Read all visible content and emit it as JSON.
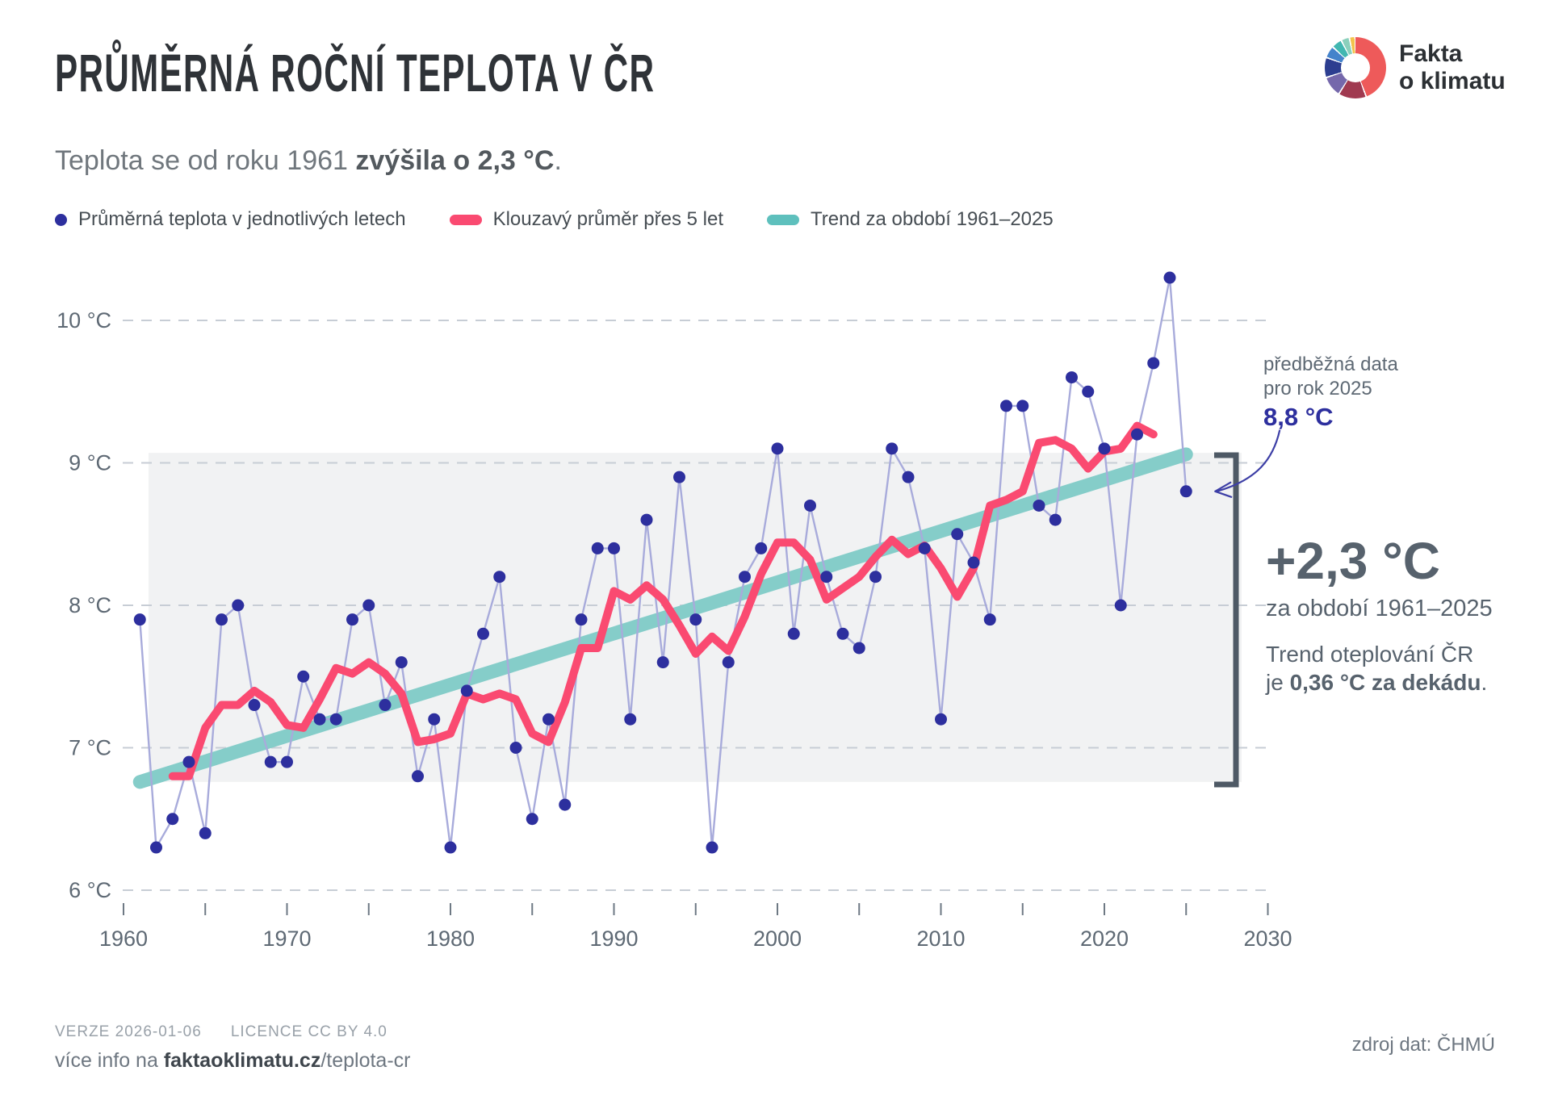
{
  "header": {
    "title": "PRŮMĚRNÁ ROČNÍ TEPLOTA V ČR",
    "subtitle_prefix": "Teplota se od roku 1961 ",
    "subtitle_bold": "zvýšila o 2,3 °C",
    "subtitle_suffix": "."
  },
  "logo": {
    "line1": "Fakta",
    "line2": "o klimatu",
    "segments": [
      {
        "color": "#ee5a5a",
        "from": 0,
        "to": 158
      },
      {
        "color": "#a03a50",
        "from": 161,
        "to": 211
      },
      {
        "color": "#7568ab",
        "from": 214,
        "to": 250
      },
      {
        "color": "#2c3e90",
        "from": 253,
        "to": 288
      },
      {
        "color": "#4583cb",
        "from": 291,
        "to": 311
      },
      {
        "color": "#41b7b1",
        "from": 314,
        "to": 331
      },
      {
        "color": "#8ad0bc",
        "from": 334,
        "to": 347
      },
      {
        "color": "#f3c44c",
        "from": 350,
        "to": 358
      }
    ]
  },
  "legend": [
    {
      "label": "Průměrná teplota v jednotlivých letech",
      "marker": "dot",
      "color": "#2d2f9e"
    },
    {
      "label": "Klouzavý průměr přes 5 let",
      "marker": "pill",
      "color": "#fa4a71"
    },
    {
      "label": "Trend za období 1961–2025",
      "marker": "pill",
      "color": "#5ec0bd"
    }
  ],
  "chart_data": {
    "type": "scatter",
    "title": "Průměrná roční teplota v ČR",
    "ylabel": "°C",
    "ylim": [
      6,
      10.5
    ],
    "x_range": [
      1960,
      2030
    ],
    "x_tick_step": 5,
    "x_labels": [
      1960,
      1970,
      1980,
      1990,
      2000,
      2010,
      2020,
      2030
    ],
    "y_ticks": [
      {
        "value": 10,
        "label": "10 °C"
      },
      {
        "value": 9,
        "label": "9 °C"
      },
      {
        "value": 8,
        "label": "8 °C"
      },
      {
        "value": 7,
        "label": "7 °C"
      },
      {
        "value": 6,
        "label": "6 °C"
      }
    ],
    "grid": true,
    "years": [
      1961,
      1962,
      1963,
      1964,
      1965,
      1966,
      1967,
      1968,
      1969,
      1970,
      1971,
      1972,
      1973,
      1974,
      1975,
      1976,
      1977,
      1978,
      1979,
      1980,
      1981,
      1982,
      1983,
      1984,
      1985,
      1986,
      1987,
      1988,
      1989,
      1990,
      1991,
      1992,
      1993,
      1994,
      1995,
      1996,
      1997,
      1998,
      1999,
      2000,
      2001,
      2002,
      2003,
      2004,
      2005,
      2006,
      2007,
      2008,
      2009,
      2010,
      2011,
      2012,
      2013,
      2014,
      2015,
      2016,
      2017,
      2018,
      2019,
      2020,
      2021,
      2022,
      2023,
      2024,
      2025
    ],
    "values": [
      7.9,
      6.3,
      6.5,
      6.9,
      6.4,
      7.9,
      8.0,
      7.3,
      6.9,
      6.9,
      7.5,
      7.2,
      7.2,
      7.9,
      8.0,
      7.3,
      7.6,
      6.8,
      7.2,
      6.3,
      7.4,
      7.8,
      8.2,
      7.0,
      6.5,
      7.2,
      6.6,
      7.9,
      8.4,
      8.4,
      7.2,
      8.6,
      7.6,
      8.9,
      7.9,
      6.3,
      7.6,
      8.2,
      8.4,
      9.1,
      7.8,
      8.7,
      8.2,
      7.8,
      7.7,
      8.2,
      9.1,
      8.9,
      8.4,
      7.2,
      8.5,
      8.3,
      7.9,
      9.4,
      9.4,
      8.7,
      8.6,
      9.6,
      9.5,
      9.1,
      8.0,
      9.2,
      9.7,
      10.3,
      8.8
    ],
    "moving_average_window": 5,
    "trend": {
      "start_year": 1961,
      "end_year": 2025,
      "start_value": 6.76,
      "end_value": 9.06
    },
    "band": {
      "top": 9.07,
      "bottom": 6.76
    },
    "colors": {
      "dots": "#2d2f9e",
      "connector": "#a8abdb",
      "moving_avg": "#fa4a71",
      "trend": "#85cdc9",
      "band": "#f1f2f3",
      "grid": "#c7cdd5",
      "tick": "#6e7984",
      "axis_text": "#5e6974",
      "bracket": "#4e5965",
      "arrow": "#3d3fa6"
    }
  },
  "annotation_2025": {
    "line1": "předběžná data",
    "line2": "pro rok 2025",
    "value": "8,8 °C"
  },
  "stats": {
    "delta": "+2,3 °C",
    "period": "za období 1961–2025",
    "trend_line1": "Trend oteplování ČR",
    "trend_prefix": "je ",
    "trend_bold": "0,36 °C za dekádu",
    "trend_suffix": "."
  },
  "footer": {
    "version": "VERZE 2026-01-06",
    "licence": "LICENCE CC BY 4.0",
    "info_prefix": "více info na ",
    "info_bold": "faktaoklimatu.cz",
    "info_suffix": "/teplota-cr",
    "source": "zdroj dat: ČHMÚ"
  }
}
